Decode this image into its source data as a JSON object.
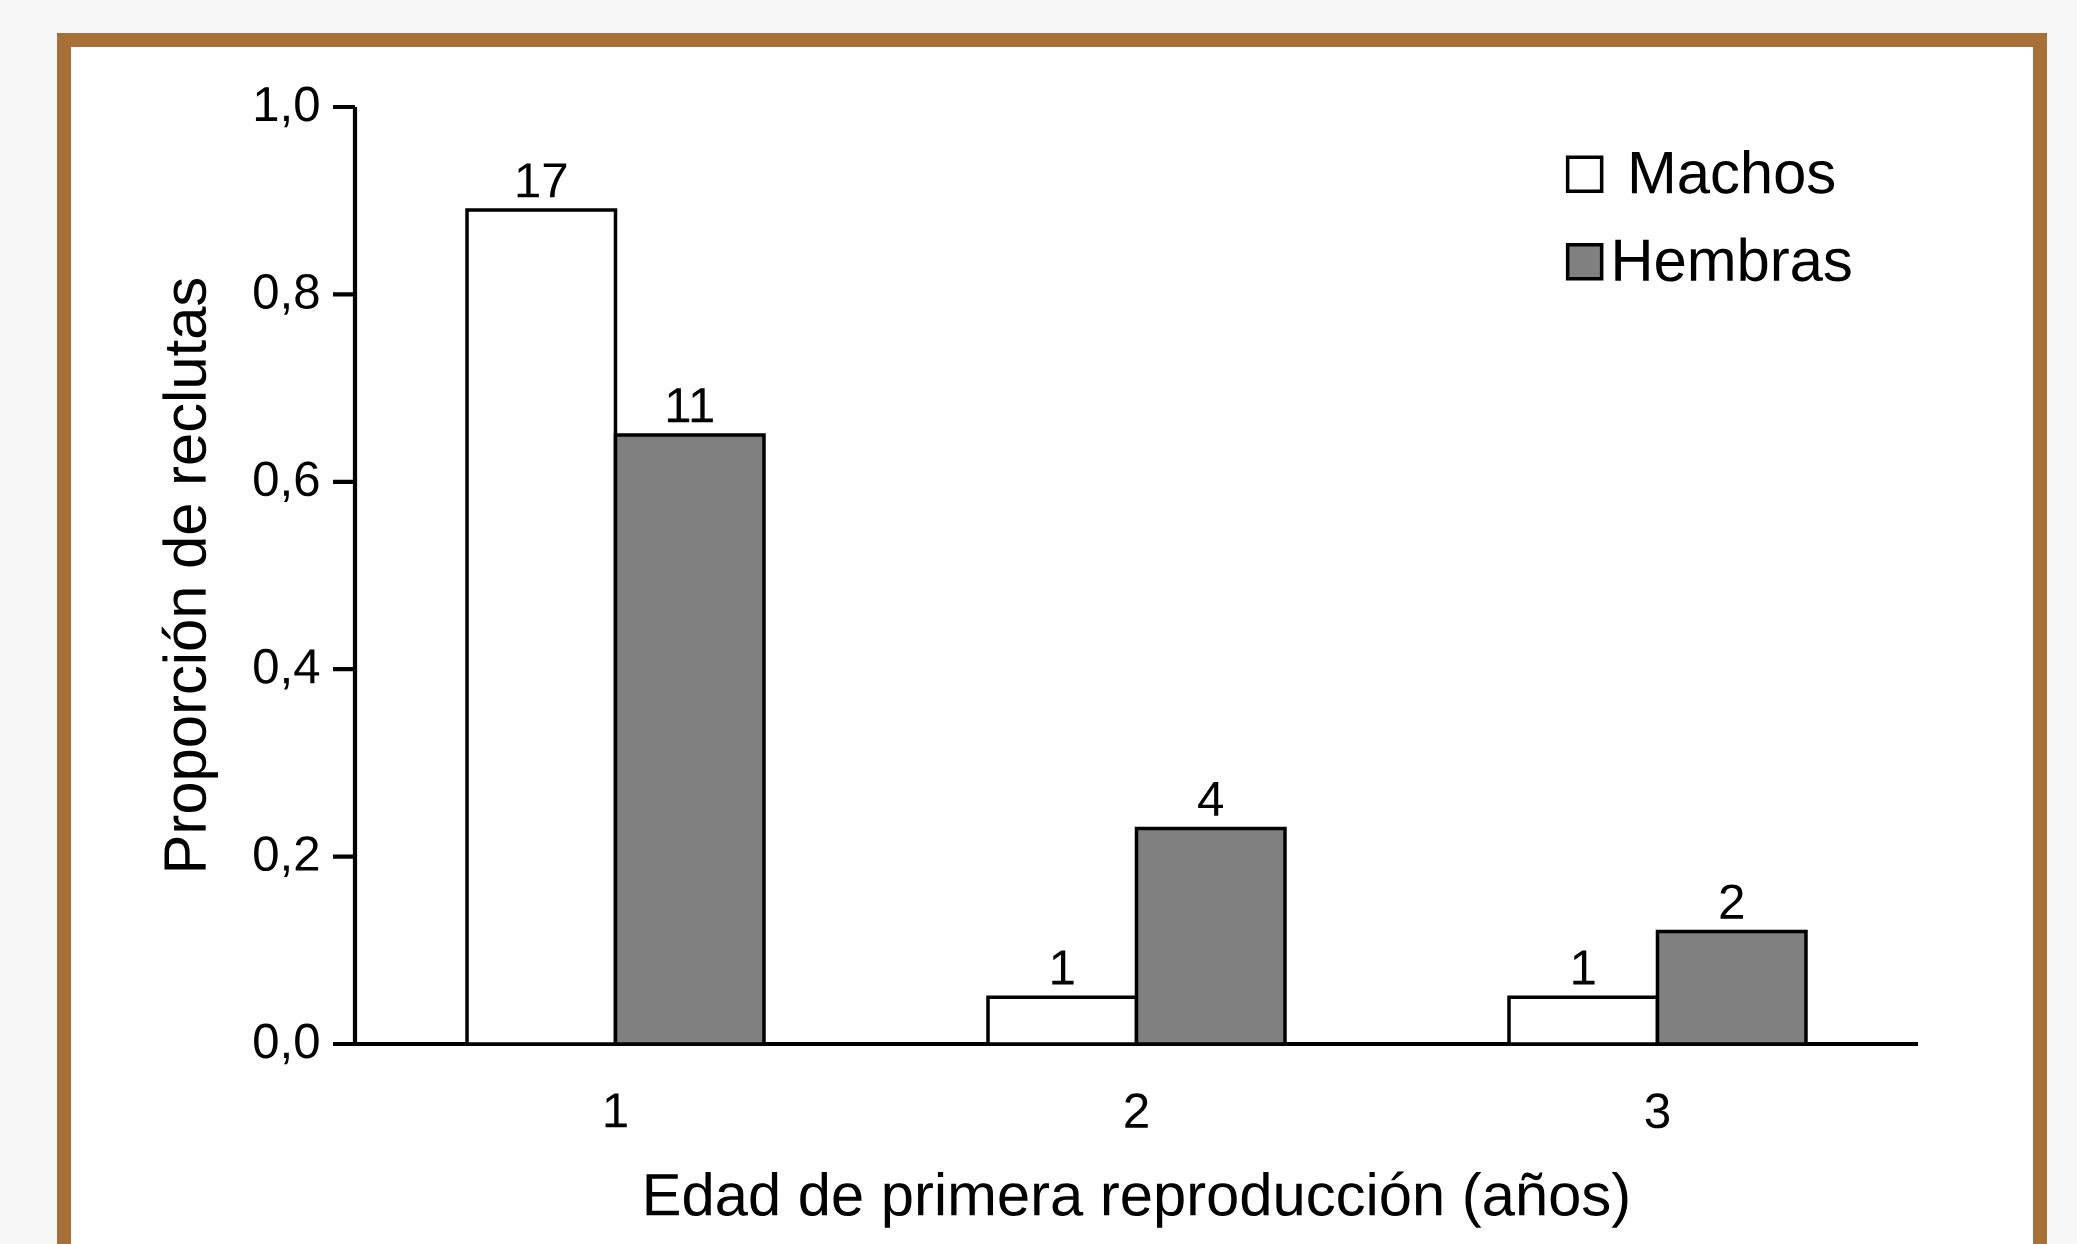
{
  "chart_data": {
    "type": "bar",
    "xlabel": "Edad de primera reproducción (años)",
    "ylabel": "Proporción de reclutas",
    "categories": [
      "1",
      "2",
      "3"
    ],
    "series": [
      {
        "name": "Machos",
        "color": "#ffffff",
        "values": [
          0.89,
          0.05,
          0.05
        ]
      },
      {
        "name": "Hembras",
        "color": "#808080",
        "values": [
          0.65,
          0.23,
          0.12
        ]
      }
    ],
    "annotations": [
      {
        "text": "17",
        "x": "1",
        "y": 0.89
      },
      {
        "text": "11",
        "x": "1",
        "y": 0.65
      },
      {
        "text": "1",
        "x": "2",
        "y": 0.05
      },
      {
        "text": "4",
        "x": "2",
        "y": 0.23
      },
      {
        "text": "1",
        "x": "3",
        "y": 0.05
      },
      {
        "text": "2",
        "x": "3",
        "y": 0.12
      }
    ],
    "ylim": [
      0,
      1.0
    ],
    "yticks": [
      {
        "value": 0,
        "label": "0,0"
      },
      {
        "value": 0.2,
        "label": "0,2"
      },
      {
        "value": 0.4,
        "label": "0,4"
      },
      {
        "value": 0.6,
        "label": "0,6"
      },
      {
        "value": 0.8,
        "label": "0,8"
      },
      {
        "value": 1.0,
        "label": "1,0"
      }
    ],
    "legend": "top right",
    "grid": false
  }
}
